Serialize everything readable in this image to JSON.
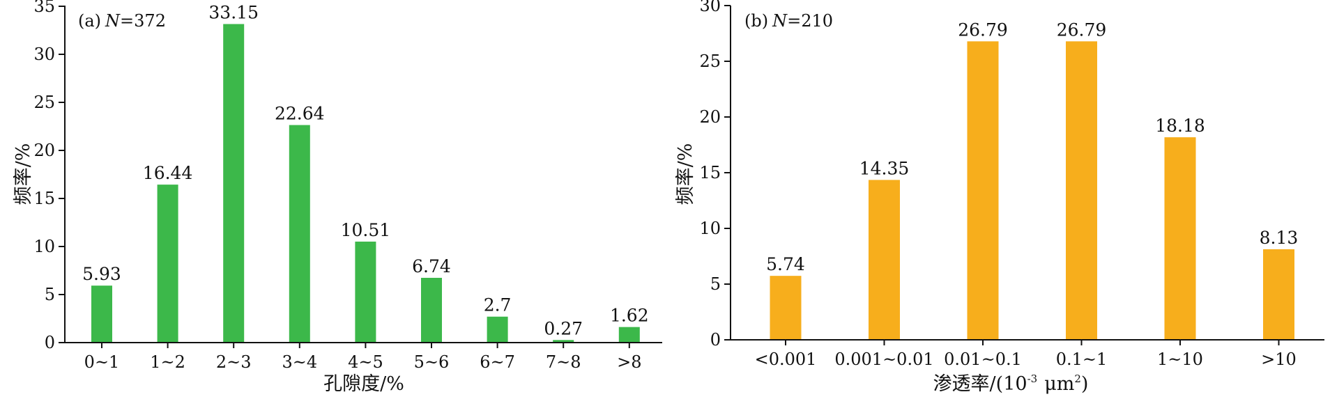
{
  "chart_data": [
    {
      "type": "bar",
      "panel_label": "(a)",
      "n_symbol": "N",
      "n_value": "=372",
      "xlabel": "孔隙度/%",
      "ylabel": "频率/%",
      "ylim": [
        0,
        35
      ],
      "yticks": [
        "0",
        "5",
        "10",
        "15",
        "20",
        "25",
        "30",
        "35"
      ],
      "categories": [
        "0~1",
        "1~2",
        "2~3",
        "3~4",
        "4~5",
        "5~6",
        "6~7",
        "7~8",
        ">8"
      ],
      "values": [
        5.93,
        16.44,
        33.15,
        22.64,
        10.51,
        6.74,
        2.7,
        0.27,
        1.62
      ],
      "value_labels": [
        "5.93",
        "16.44",
        "33.15",
        "22.64",
        "10.51",
        "6.74",
        "2.7",
        "0.27",
        "1.62"
      ],
      "color": "#3cb84a",
      "grid": false
    },
    {
      "type": "bar",
      "panel_label": "(b)",
      "n_symbol": "N",
      "n_value": "=210",
      "xlabel_main": "渗透率/(10",
      "xlabel_sup1": "-3",
      "xlabel_unit": "μm",
      "xlabel_sup2": "2",
      "xlabel_end": ")",
      "ylabel": "频率/%",
      "ylim": [
        0,
        30
      ],
      "yticks": [
        "0",
        "5",
        "10",
        "15",
        "20",
        "25",
        "30"
      ],
      "categories": [
        "<0.001",
        "0.001~0.01",
        "0.01~0.1",
        "0.1~1",
        "1~10",
        ">10"
      ],
      "values": [
        5.74,
        14.35,
        26.79,
        26.79,
        18.18,
        8.13
      ],
      "value_labels": [
        "5.74",
        "14.35",
        "26.79",
        "26.79",
        "18.18",
        "8.13"
      ],
      "color": "#f7ae1c",
      "grid": false
    }
  ]
}
